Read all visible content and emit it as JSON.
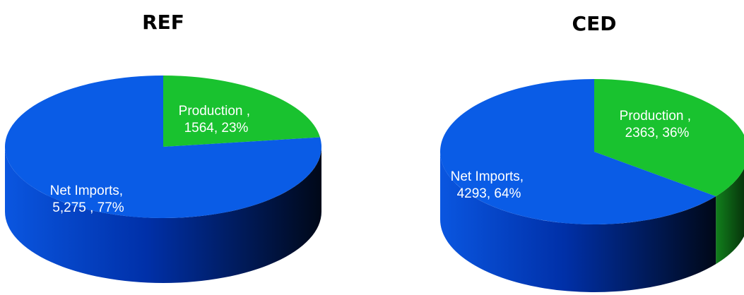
{
  "colors": {
    "net_imports": "#0a5ce6",
    "net_imports_side_light": "#0040c8",
    "net_imports_side_dark": "#000a28",
    "production": "#19c22f",
    "production_side": "#0b4a10"
  },
  "chart_data": [
    {
      "type": "pie",
      "title": "REF",
      "slices": [
        {
          "name": "Net Imports",
          "value": 5275,
          "percent": 77,
          "label_lines": [
            "Net Imports,",
            "5,275 , 77%"
          ],
          "color": "#0a5ce6"
        },
        {
          "name": "Production",
          "value": 1564,
          "percent": 23,
          "label_lines": [
            "Production ,",
            "1564, 23%"
          ],
          "color": "#19c22f"
        }
      ]
    },
    {
      "type": "pie",
      "title": "CED",
      "slices": [
        {
          "name": "Net Imports",
          "value": 4293,
          "percent": 64,
          "label_lines": [
            "Net Imports,",
            "4293, 64%"
          ],
          "color": "#0a5ce6"
        },
        {
          "name": "Production",
          "value": 2363,
          "percent": 36,
          "label_lines": [
            "Production ,",
            "2363, 36%"
          ],
          "color": "#19c22f"
        }
      ]
    }
  ]
}
